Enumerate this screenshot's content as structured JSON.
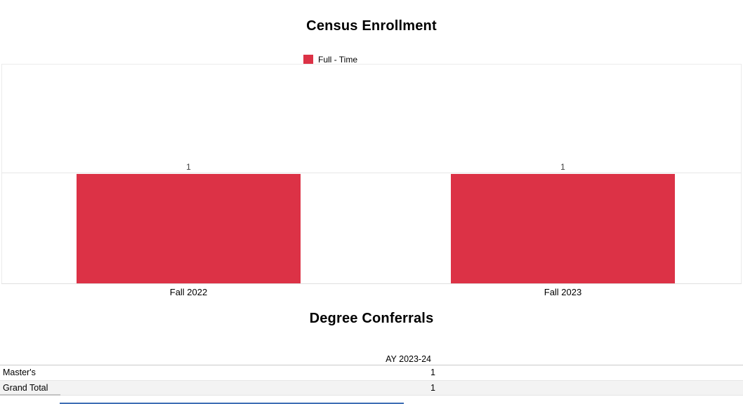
{
  "colors": {
    "bar": "#dc3246",
    "grand_total_row_bg": "#f3f3f3",
    "bottom_strip": "#3f6fb5"
  },
  "chart_data": [
    {
      "type": "bar",
      "title": "Census Enrollment",
      "categories": [
        "Fall 2022",
        "Fall 2023"
      ],
      "series": [
        {
          "name": "Full - Time",
          "color": "#dc3246",
          "values": [
            1,
            1
          ]
        }
      ],
      "data_labels": [
        "1",
        "1"
      ],
      "xlabel": "",
      "ylabel": "",
      "ylim": [
        0,
        2
      ],
      "grid": true,
      "gridline_values": [
        1
      ],
      "legend_position": "top-center"
    },
    {
      "type": "table",
      "title": "Degree Conferrals",
      "columns": [
        "",
        "AY 2023-24"
      ],
      "rows": [
        {
          "label": "Master's",
          "value": "1"
        },
        {
          "label": "Grand Total",
          "value": "1"
        }
      ]
    }
  ]
}
